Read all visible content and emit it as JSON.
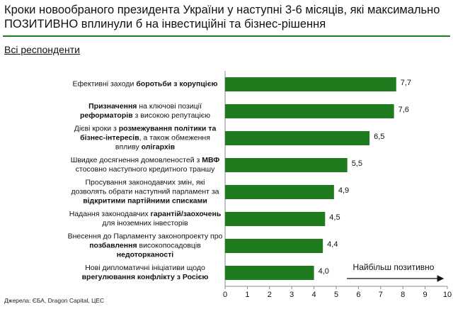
{
  "chart_data": {
    "type": "bar",
    "orientation": "horizontal",
    "title": "Кроки новообраного президента України у наступні 3-6 місяців, які максимально ПОЗИТИВНО вплинули б на інвестиційні та бізнес-рішення",
    "subtitle": "Всі респонденти",
    "categories": [
      [
        "Ефективні заходи ",
        {
          "text": "боротьби з корупцією",
          "bold": true
        }
      ],
      [
        {
          "text": "Призначення",
          "bold": true
        },
        " на ключові позиції ",
        {
          "text": "реформаторів",
          "bold": true
        },
        " з високою репутацією"
      ],
      [
        "Дієві кроки з ",
        {
          "text": "розмежування політики та бізнес-інтересів",
          "bold": true
        },
        ", а також обмеження впливу ",
        {
          "text": "олігархів",
          "bold": true
        }
      ],
      [
        "Швидке досягнення домовленостей з ",
        {
          "text": "МВФ",
          "bold": true
        },
        " стосовно наступного кредитного траншу"
      ],
      [
        "Просування законодавчих змін, які дозволять обрати наступний парламент за ",
        {
          "text": "відкритими партійними списками",
          "bold": true
        }
      ],
      [
        "Надання законодавчих ",
        {
          "text": "гарантій/заохочень",
          "bold": true
        },
        " для іноземних інвесторів"
      ],
      [
        "Внесення до Парламенту законопроекту про ",
        {
          "text": "позбавлення",
          "bold": true
        },
        " високопосадовців ",
        {
          "text": "недоторканості",
          "bold": true
        }
      ],
      [
        "Нові дипломатичні ініціативи щодо ",
        {
          "text": "врегулювання конфлікту з Росією",
          "bold": true
        }
      ]
    ],
    "values": [
      7.7,
      7.6,
      6.5,
      5.5,
      4.9,
      4.5,
      4.4,
      4.0
    ],
    "value_labels": [
      "7,7",
      "7,6",
      "6,5",
      "5,5",
      "4,9",
      "4,5",
      "4,4",
      "4,0"
    ],
    "color": "#1e7b1e",
    "xlim": [
      0,
      10
    ],
    "xticks": [
      0,
      1,
      2,
      3,
      4,
      5,
      6,
      7,
      8,
      9,
      10
    ],
    "annotation": "Найбільш позитивно",
    "source": "Джерела: ЄБА, Dragon Capital, ЦЕС"
  }
}
